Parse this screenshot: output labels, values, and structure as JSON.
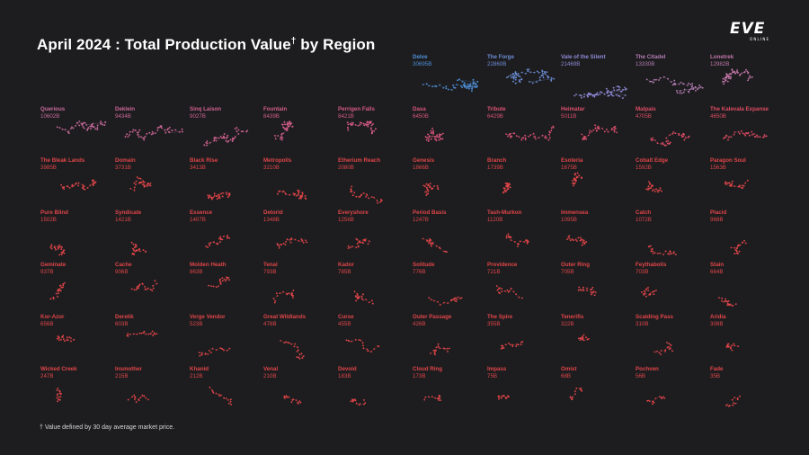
{
  "title": "April 2024 : Total Production Value",
  "title_mark": "†",
  "title_suffix": " by Region",
  "logo": {
    "word": "EVE",
    "sub": "ONLINE"
  },
  "footnote": "† Value defined by 30 day average market price.",
  "colors": {
    "background": "#1d1d1f",
    "top": "#4f8fd8",
    "lavender": "#8e8ad6",
    "mauve": "#c96b9e",
    "red": "#e04549"
  },
  "chart_data": {
    "type": "small-multiples",
    "title": "April 2024 : Total Production Value† by Region",
    "unit": "B",
    "regions": [
      {
        "name": "Delve",
        "value": 30695,
        "label": "30695B",
        "color": "#4f8fd8"
      },
      {
        "name": "The Forge",
        "value": 22860,
        "label": "22860B",
        "color": "#6d8ed6"
      },
      {
        "name": "Vale of the Silent",
        "value": 21469,
        "label": "21469B",
        "color": "#8e8ad6"
      },
      {
        "name": "The Citadel",
        "value": 13330,
        "label": "13330B",
        "color": "#b47cb4"
      },
      {
        "name": "Lonetrek",
        "value": 12982,
        "label": "12982B",
        "color": "#c076a8"
      },
      {
        "name": "Querious",
        "value": 10602,
        "label": "10602B",
        "color": "#c96b9e"
      },
      {
        "name": "Deklein",
        "value": 9434,
        "label": "9434B",
        "color": "#cd6696"
      },
      {
        "name": "Sinq Laison",
        "value": 9027,
        "label": "9027B",
        "color": "#d0618f"
      },
      {
        "name": "Fountain",
        "value": 8439,
        "label": "8439B",
        "color": "#d35d88"
      },
      {
        "name": "Perrigen Falls",
        "value": 8421,
        "label": "8421B",
        "color": "#d55a82"
      },
      {
        "name": "Dasa",
        "value": 6450,
        "label": "6450B",
        "color": "#d8557a"
      },
      {
        "name": "Tribute",
        "value": 6429,
        "label": "6429B",
        "color": "#da5274"
      },
      {
        "name": "Heimatar",
        "value": 5011,
        "label": "5011B",
        "color": "#dc4f6c"
      },
      {
        "name": "Malpais",
        "value": 4705,
        "label": "4705B",
        "color": "#dd4d66"
      },
      {
        "name": "The Kalevala Expanse",
        "value": 4650,
        "label": "4650B",
        "color": "#de4b62"
      },
      {
        "name": "The Bleak Lands",
        "value": 3985,
        "label": "3985B",
        "color": "#e04549"
      },
      {
        "name": "Domain",
        "value": 3731,
        "label": "3731B",
        "color": "#e04549"
      },
      {
        "name": "Black Rise",
        "value": 3413,
        "label": "3413B",
        "color": "#e04549"
      },
      {
        "name": "Metropolis",
        "value": 3210,
        "label": "3210B",
        "color": "#e04549"
      },
      {
        "name": "Etherium Reach",
        "value": 2080,
        "label": "2080B",
        "color": "#e04549"
      },
      {
        "name": "Genesis",
        "value": 1866,
        "label": "1866B",
        "color": "#e04549"
      },
      {
        "name": "Branch",
        "value": 1739,
        "label": "1739B",
        "color": "#e04549"
      },
      {
        "name": "Esoteria",
        "value": 1675,
        "label": "1675B",
        "color": "#e04549"
      },
      {
        "name": "Cobalt Edge",
        "value": 1592,
        "label": "1592B",
        "color": "#e04549"
      },
      {
        "name": "Paragon Soul",
        "value": 1563,
        "label": "1563B",
        "color": "#e04549"
      },
      {
        "name": "Pure Blind",
        "value": 1502,
        "label": "1502B",
        "color": "#e04549"
      },
      {
        "name": "Syndicate",
        "value": 1421,
        "label": "1421B",
        "color": "#e04549"
      },
      {
        "name": "Essence",
        "value": 1407,
        "label": "1407B",
        "color": "#e04549"
      },
      {
        "name": "Detorid",
        "value": 1348,
        "label": "1348B",
        "color": "#e04549"
      },
      {
        "name": "Everyshore",
        "value": 1256,
        "label": "1256B",
        "color": "#e04549"
      },
      {
        "name": "Period Basis",
        "value": 1247,
        "label": "1247B",
        "color": "#e04549"
      },
      {
        "name": "Tash-Murkon",
        "value": 1120,
        "label": "1120B",
        "color": "#e04549"
      },
      {
        "name": "Immensea",
        "value": 1095,
        "label": "1095B",
        "color": "#e04549"
      },
      {
        "name": "Catch",
        "value": 1072,
        "label": "1072B",
        "color": "#e04549"
      },
      {
        "name": "Placid",
        "value": 968,
        "label": "968B",
        "color": "#e04549"
      },
      {
        "name": "Geminate",
        "value": 937,
        "label": "937B",
        "color": "#e04549"
      },
      {
        "name": "Cache",
        "value": 906,
        "label": "906B",
        "color": "#e04549"
      },
      {
        "name": "Molden Heath",
        "value": 863,
        "label": "863B",
        "color": "#e04549"
      },
      {
        "name": "Tenal",
        "value": 793,
        "label": "793B",
        "color": "#e04549"
      },
      {
        "name": "Kador",
        "value": 785,
        "label": "785B",
        "color": "#e04549"
      },
      {
        "name": "Solitude",
        "value": 776,
        "label": "776B",
        "color": "#e04549"
      },
      {
        "name": "Providence",
        "value": 721,
        "label": "721B",
        "color": "#e04549"
      },
      {
        "name": "Outer Ring",
        "value": 705,
        "label": "705B",
        "color": "#e04549"
      },
      {
        "name": "Feythabolis",
        "value": 703,
        "label": "703B",
        "color": "#e04549"
      },
      {
        "name": "Stain",
        "value": 664,
        "label": "664B",
        "color": "#e04549"
      },
      {
        "name": "Kor-Azor",
        "value": 656,
        "label": "656B",
        "color": "#e04549"
      },
      {
        "name": "Derelik",
        "value": 603,
        "label": "603B",
        "color": "#e04549"
      },
      {
        "name": "Verge Vendor",
        "value": 523,
        "label": "523B",
        "color": "#e04549"
      },
      {
        "name": "Great Wildlands",
        "value": 478,
        "label": "478B",
        "color": "#e04549"
      },
      {
        "name": "Curse",
        "value": 455,
        "label": "455B",
        "color": "#e04549"
      },
      {
        "name": "Outer Passage",
        "value": 426,
        "label": "426B",
        "color": "#e04549"
      },
      {
        "name": "The Spire",
        "value": 355,
        "label": "355B",
        "color": "#e04549"
      },
      {
        "name": "Tenerifis",
        "value": 322,
        "label": "322B",
        "color": "#e04549"
      },
      {
        "name": "Scalding Pass",
        "value": 310,
        "label": "310B",
        "color": "#e04549"
      },
      {
        "name": "Aridia",
        "value": 308,
        "label": "308B",
        "color": "#e04549"
      },
      {
        "name": "Wicked Creek",
        "value": 247,
        "label": "247B",
        "color": "#e04549"
      },
      {
        "name": "Insmother",
        "value": 215,
        "label": "215B",
        "color": "#e04549"
      },
      {
        "name": "Khanid",
        "value": 212,
        "label": "212B",
        "color": "#e04549"
      },
      {
        "name": "Venal",
        "value": 210,
        "label": "210B",
        "color": "#e04549"
      },
      {
        "name": "Devoid",
        "value": 183,
        "label": "183B",
        "color": "#e04549"
      },
      {
        "name": "Cloud Ring",
        "value": 173,
        "label": "173B",
        "color": "#e04549"
      },
      {
        "name": "Impass",
        "value": 75,
        "label": "75B",
        "color": "#e04549"
      },
      {
        "name": "Omist",
        "value": 68,
        "label": "68B",
        "color": "#e04549"
      },
      {
        "name": "Pochven",
        "value": 56,
        "label": "56B",
        "color": "#e04549"
      },
      {
        "name": "Fade",
        "value": 35,
        "label": "35B",
        "color": "#e04549"
      }
    ]
  }
}
